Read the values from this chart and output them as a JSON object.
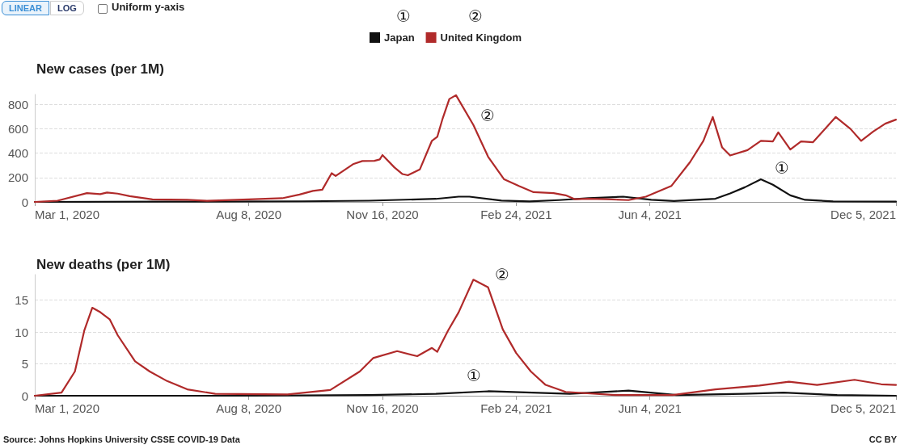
{
  "chart_data": [
    {
      "type": "line",
      "title": "New cases (per 1M)",
      "legend": "top",
      "grid": "y",
      "xlim": [
        "2020-03-01",
        "2021-12-05"
      ],
      "xticks": [
        {
          "value": "2020-03-01",
          "label": "Mar 1, 2020"
        },
        {
          "value": "2020-08-08",
          "label": "Aug 8, 2020"
        },
        {
          "value": "2020-11-16",
          "label": "Nov 16, 2020"
        },
        {
          "value": "2021-02-24",
          "label": "Feb 24, 2021"
        },
        {
          "value": "2021-06-04",
          "label": "Jun 4, 2021"
        },
        {
          "value": "2021-12-05",
          "label": "Dec 5, 2021"
        }
      ],
      "ylim": [
        0,
        880
      ],
      "yticks": [
        0,
        200,
        400,
        600,
        800
      ],
      "series": [
        {
          "name": "Japan",
          "color": "#111111",
          "x": [
            "2020-03-01",
            "2020-06-09",
            "2020-09-17",
            "2020-11-06",
            "2020-12-26",
            "2021-01-12",
            "2021-01-20",
            "2021-02-13",
            "2021-03-06",
            "2021-03-28",
            "2021-04-19",
            "2021-05-15",
            "2021-06-05",
            "2021-06-22",
            "2021-07-23",
            "2021-08-03",
            "2021-08-14",
            "2021-08-26",
            "2021-09-04",
            "2021-09-17",
            "2021-09-28",
            "2021-10-19",
            "2021-12-05"
          ],
          "values": [
            0,
            2,
            5,
            10,
            25,
            43,
            43,
            11,
            4,
            15,
            30,
            43,
            17,
            7,
            26,
            70,
            120,
            185,
            141,
            54,
            17,
            4,
            2
          ]
        },
        {
          "name": "United Kingdom",
          "color": "#b02a2a",
          "x": [
            "2020-03-01",
            "2020-03-18",
            "2020-04-09",
            "2020-04-19",
            "2020-04-24",
            "2020-05-02",
            "2020-05-11",
            "2020-05-28",
            "2020-06-23",
            "2020-07-08",
            "2020-08-08",
            "2020-09-02",
            "2020-09-15",
            "2020-09-25",
            "2020-10-02",
            "2020-10-09",
            "2020-10-12",
            "2020-10-25",
            "2020-11-01",
            "2020-11-10",
            "2020-11-14",
            "2020-11-16",
            "2020-11-25",
            "2020-12-01",
            "2020-12-05",
            "2020-12-14",
            "2020-12-23",
            "2020-12-27",
            "2020-12-31",
            "2021-01-05",
            "2021-01-10",
            "2021-01-23",
            "2021-02-03",
            "2021-02-15",
            "2021-02-26",
            "2021-03-09",
            "2021-03-24",
            "2021-04-02",
            "2021-04-09",
            "2021-04-19",
            "2021-05-02",
            "2021-05-19",
            "2021-06-01",
            "2021-06-20",
            "2021-07-04",
            "2021-07-14",
            "2021-07-21",
            "2021-07-28",
            "2021-08-03",
            "2021-08-16",
            "2021-08-26",
            "2021-09-04",
            "2021-09-08",
            "2021-09-17",
            "2021-09-25",
            "2021-10-04",
            "2021-10-21",
            "2021-11-01",
            "2021-11-09",
            "2021-11-18",
            "2021-11-27",
            "2021-12-05"
          ],
          "values": [
            0,
            10,
            72,
            64,
            77,
            68,
            47,
            21,
            17,
            9,
            21,
            30,
            60,
            90,
            100,
            235,
            213,
            309,
            335,
            337,
            348,
            384,
            282,
            228,
            218,
            267,
            501,
            533,
            683,
            843,
            874,
            630,
            370,
            185,
            130,
            80,
            72,
            54,
            22,
            26,
            22,
            15,
            43,
            130,
            326,
            500,
            696,
            446,
            380,
            424,
            500,
            496,
            570,
            430,
            496,
            489,
            696,
            598,
            500,
            576,
            641,
            674
          ]
        }
      ],
      "annotations": [
        "LINEAR",
        "LOG",
        "Uniform y-axis",
        "①",
        "②",
        "②",
        "①"
      ]
    },
    {
      "type": "line",
      "title": "New deaths (per 1M)",
      "grid": "y",
      "xlim": [
        "2020-03-01",
        "2021-12-05"
      ],
      "xticks": [
        {
          "value": "2020-03-01",
          "label": "Mar 1, 2020"
        },
        {
          "value": "2020-08-08",
          "label": "Aug 8, 2020"
        },
        {
          "value": "2020-11-16",
          "label": "Nov 16, 2020"
        },
        {
          "value": "2021-02-24",
          "label": "Feb 24, 2021"
        },
        {
          "value": "2021-06-04",
          "label": "Jun 4, 2021"
        },
        {
          "value": "2021-12-05",
          "label": "Dec 5, 2021"
        }
      ],
      "ylim": [
        0,
        19
      ],
      "yticks": [
        0,
        5,
        10,
        15
      ],
      "series": [
        {
          "color": "#111111",
          "x": [
            "2020-03-01",
            "2020-07-29",
            "2020-11-06",
            "2020-12-26",
            "2021-02-03",
            "2021-04-05",
            "2021-05-19",
            "2021-06-24",
            "2021-08-13",
            "2021-09-12",
            "2021-10-22",
            "2021-12-05"
          ],
          "values": [
            0,
            0,
            0.1,
            0.3,
            0.7,
            0.3,
            0.8,
            0.1,
            0.3,
            0.5,
            0.1,
            0
          ]
        },
        {
          "color": "#b02a2a",
          "x": [
            "2020-03-01",
            "2020-03-21",
            "2020-03-31",
            "2020-04-07",
            "2020-04-13",
            "2020-04-19",
            "2020-04-26",
            "2020-05-02",
            "2020-05-15",
            "2020-05-26",
            "2020-06-08",
            "2020-06-23",
            "2020-07-14",
            "2020-09-06",
            "2020-10-08",
            "2020-10-30",
            "2020-11-09",
            "2020-11-27",
            "2020-12-12",
            "2020-12-23",
            "2020-12-27",
            "2021-01-04",
            "2021-01-12",
            "2021-01-23",
            "2021-02-03",
            "2021-02-14",
            "2021-02-24",
            "2021-03-07",
            "2021-03-18",
            "2021-04-02",
            "2021-05-09",
            "2021-06-21",
            "2021-07-23",
            "2021-08-25",
            "2021-09-16",
            "2021-10-07",
            "2021-11-04",
            "2021-11-24",
            "2021-12-05"
          ],
          "values": [
            0,
            0.5,
            3.8,
            10.2,
            13.8,
            13.1,
            12.0,
            9.5,
            5.4,
            3.8,
            2.3,
            1.0,
            0.3,
            0.2,
            0.9,
            3.8,
            5.9,
            7.0,
            6.2,
            7.5,
            6.9,
            10.2,
            13.1,
            18.2,
            17.0,
            10.4,
            6.7,
            3.8,
            1.7,
            0.6,
            0.1,
            0.1,
            1.0,
            1.6,
            2.2,
            1.7,
            2.5,
            1.8,
            1.7
          ]
        }
      ],
      "annotations": [
        "②",
        "①",
        "Source: Johns Hopkins University CSSE COVID-19 Data",
        "CC BY"
      ]
    }
  ]
}
